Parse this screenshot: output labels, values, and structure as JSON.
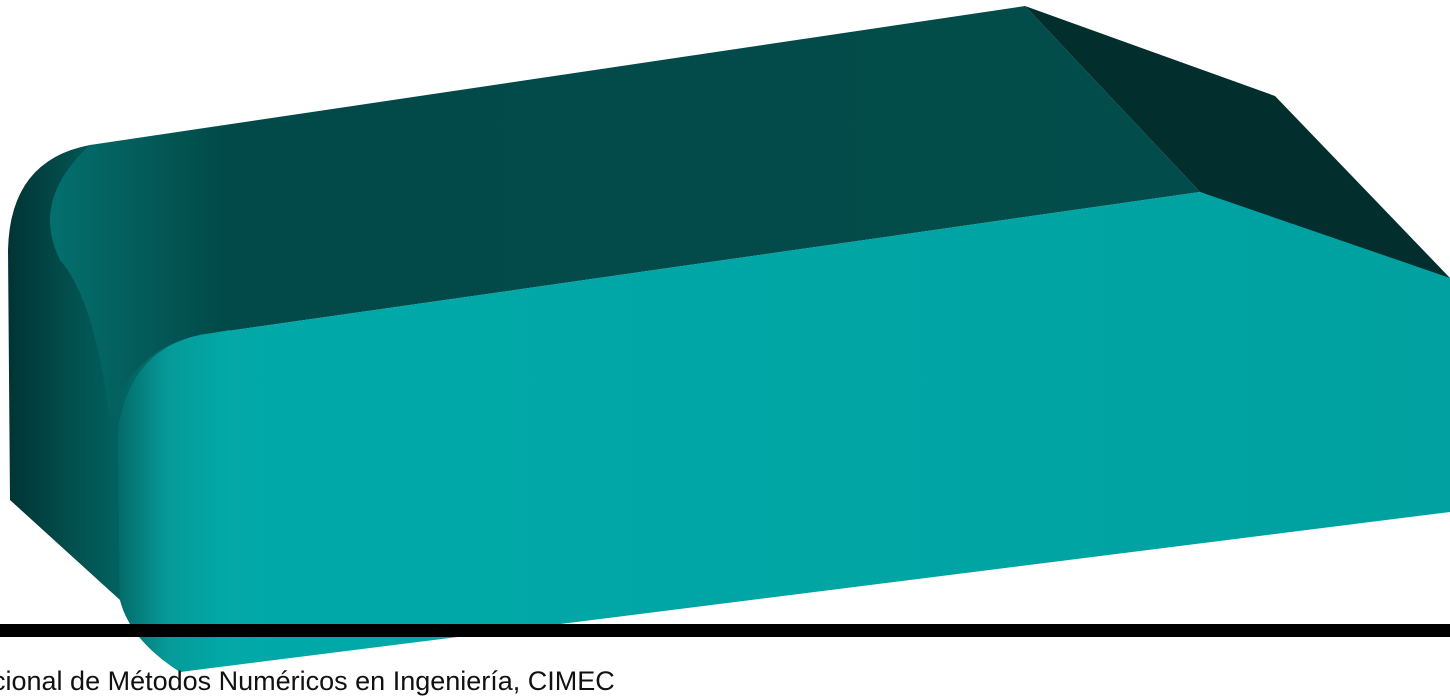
{
  "footer": {
    "caption": "cional de Métodos Numéricos en Ingeniería, CIMEC"
  },
  "render": {
    "top_face_color": "#024e4d",
    "side_face_color": "#00a3a2",
    "bevel_face_color": "#022f2e",
    "rule_color": "#000000",
    "background_color": "#ffffff"
  }
}
